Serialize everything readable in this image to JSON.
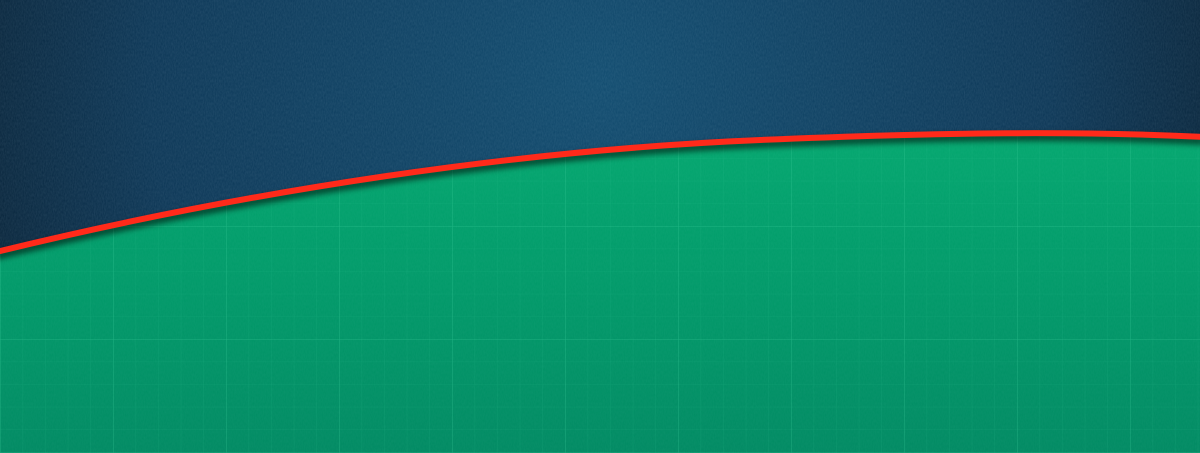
{
  "colors": {
    "sky_center": "#0f4a6e",
    "sky_mid": "#0b3555",
    "sky_edge": "#03101c",
    "field_top": "#04a86f",
    "field_mid": "#009968",
    "field_bottom": "#008a62",
    "grid_line": "#3fd6a0",
    "curve": "#ff2a1a"
  },
  "texture": "paper-grain"
}
